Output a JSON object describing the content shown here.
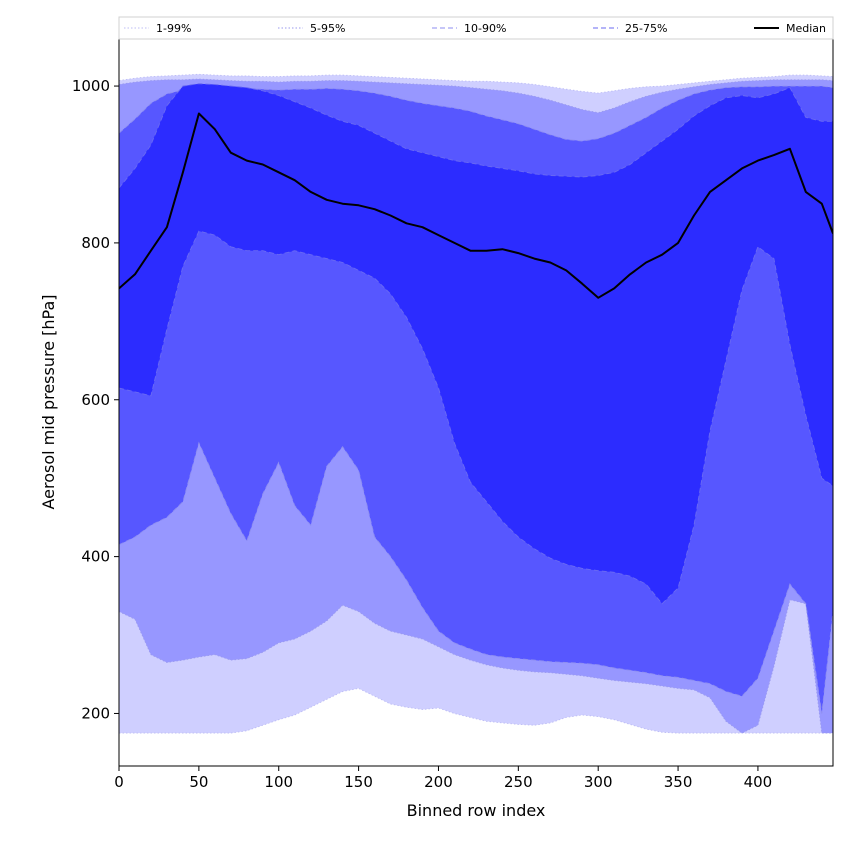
{
  "chart_data": {
    "type": "area",
    "title": "",
    "xlabel": "Binned row index",
    "ylabel": "Aerosol mid pressure [hPa]",
    "xlim": [
      0,
      447
    ],
    "ylim": [
      133,
      1060
    ],
    "xticks": [
      0,
      50,
      100,
      150,
      200,
      250,
      300,
      350,
      400
    ],
    "yticks": [
      200,
      400,
      600,
      800,
      1000
    ],
    "grid": false,
    "legend_position": "top",
    "x": [
      0,
      10,
      20,
      30,
      40,
      50,
      60,
      70,
      80,
      90,
      100,
      110,
      120,
      130,
      140,
      150,
      160,
      170,
      180,
      190,
      200,
      210,
      220,
      230,
      240,
      250,
      260,
      270,
      280,
      290,
      300,
      310,
      320,
      330,
      340,
      350,
      360,
      370,
      380,
      390,
      400,
      410,
      420,
      430,
      440,
      447
    ],
    "bands": [
      {
        "name": "1-99%",
        "color": "#cfcfff",
        "line_color": "#bdbdf5",
        "line_style": "dotted",
        "lower": [
          175,
          175,
          175,
          175,
          175,
          175,
          175,
          175,
          178,
          185,
          192,
          198,
          208,
          218,
          228,
          232,
          222,
          212,
          208,
          205,
          207,
          200,
          195,
          190,
          188,
          186,
          185,
          188,
          195,
          198,
          196,
          192,
          186,
          180,
          176,
          175,
          175,
          175,
          175,
          175,
          175,
          175,
          175,
          175,
          175,
          175
        ],
        "upper": [
          1007,
          1010,
          1012,
          1013,
          1014,
          1015,
          1014,
          1013,
          1013,
          1012,
          1012,
          1013,
          1013,
          1014,
          1014,
          1013,
          1012,
          1011,
          1010,
          1009,
          1008,
          1007,
          1006,
          1006,
          1005,
          1004,
          1002,
          999,
          996,
          993,
          991,
          994,
          997,
          999,
          1000,
          1002,
          1004,
          1006,
          1008,
          1010,
          1011,
          1012,
          1014,
          1014,
          1013,
          1012
        ]
      },
      {
        "name": "5-95%",
        "color": "#9797ff",
        "line_color": "#9a9aee",
        "line_style": "dotted",
        "lower": [
          330,
          320,
          275,
          265,
          268,
          272,
          275,
          268,
          270,
          278,
          290,
          295,
          305,
          318,
          338,
          330,
          315,
          305,
          300,
          295,
          285,
          275,
          268,
          262,
          258,
          255,
          253,
          252,
          250,
          248,
          245,
          242,
          240,
          238,
          235,
          232,
          230,
          220,
          190,
          175,
          185,
          260,
          345,
          340,
          175,
          175
        ],
        "upper": [
          1002,
          1005,
          1007,
          1008,
          1008,
          1009,
          1008,
          1007,
          1006,
          1006,
          1005,
          1006,
          1006,
          1007,
          1007,
          1006,
          1005,
          1004,
          1003,
          1002,
          1001,
          1000,
          998,
          996,
          994,
          991,
          987,
          982,
          976,
          970,
          966,
          972,
          980,
          987,
          992,
          996,
          999,
          1002,
          1004,
          1006,
          1007,
          1008,
          1008,
          1008,
          1008,
          1007
        ]
      },
      {
        "name": "10-90%",
        "color": "#5757ff",
        "line_color": "#8e8ef0",
        "line_style": "dashed",
        "lower": [
          415,
          425,
          440,
          450,
          470,
          545,
          500,
          455,
          420,
          480,
          520,
          465,
          440,
          515,
          540,
          510,
          425,
          400,
          370,
          335,
          305,
          290,
          282,
          275,
          272,
          270,
          268,
          266,
          265,
          264,
          262,
          258,
          255,
          252,
          248,
          246,
          242,
          238,
          228,
          222,
          245,
          305,
          365,
          340,
          200,
          330
        ],
        "upper": [
          940,
          958,
          978,
          990,
          995,
          999,
          999,
          998,
          997,
          996,
          995,
          996,
          996,
          997,
          996,
          994,
          991,
          987,
          982,
          978,
          975,
          972,
          968,
          962,
          957,
          952,
          945,
          938,
          932,
          930,
          933,
          940,
          950,
          960,
          972,
          982,
          990,
          995,
          998,
          999,
          999,
          1000,
          1000,
          1000,
          1000,
          998
        ]
      },
      {
        "name": "25-75%",
        "color": "#2c2cff",
        "line_color": "#6a6af2",
        "line_style": "dashed",
        "lower": [
          615,
          610,
          605,
          690,
          770,
          815,
          810,
          795,
          790,
          790,
          785,
          790,
          785,
          780,
          775,
          765,
          755,
          735,
          705,
          665,
          615,
          545,
          495,
          470,
          445,
          425,
          410,
          398,
          390,
          385,
          382,
          380,
          375,
          365,
          340,
          360,
          440,
          560,
          650,
          740,
          795,
          780,
          670,
          580,
          500,
          490
        ],
        "upper": [
          870,
          895,
          925,
          975,
          1000,
          1003,
          1002,
          1000,
          998,
          994,
          988,
          980,
          972,
          963,
          955,
          950,
          940,
          930,
          920,
          915,
          910,
          905,
          902,
          898,
          895,
          892,
          888,
          886,
          885,
          884,
          886,
          890,
          900,
          915,
          930,
          945,
          962,
          975,
          985,
          988,
          985,
          990,
          998,
          960,
          955,
          955
        ]
      }
    ],
    "series": [
      {
        "name": "Median",
        "color": "#000000",
        "values": [
          742,
          760,
          790,
          820,
          890,
          965,
          945,
          915,
          905,
          900,
          890,
          880,
          865,
          855,
          850,
          848,
          843,
          835,
          825,
          820,
          810,
          800,
          790,
          790,
          792,
          787,
          780,
          775,
          765,
          748,
          730,
          742,
          760,
          775,
          785,
          800,
          835,
          865,
          880,
          895,
          905,
          912,
          920,
          865,
          850,
          812
        ]
      }
    ]
  }
}
